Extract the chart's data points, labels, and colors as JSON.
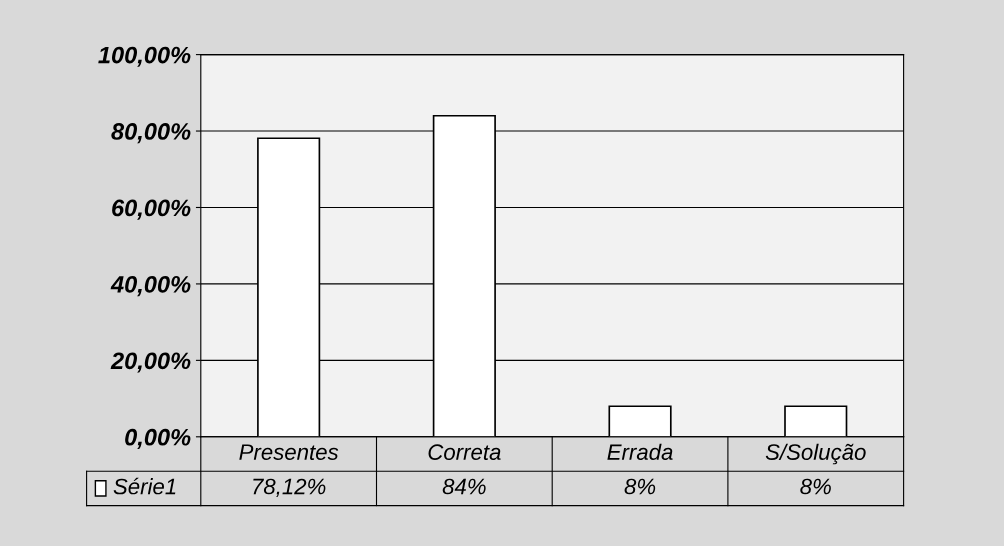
{
  "chart_data": {
    "type": "bar",
    "categories": [
      "Presentes",
      "Correta",
      "Errada",
      "S/Solução"
    ],
    "series": [
      {
        "name": "Série1",
        "color": "#ffffff",
        "values": [
          78.12,
          84,
          8,
          8
        ]
      }
    ],
    "value_labels": [
      "78,12%",
      "84%",
      "8%",
      "8%"
    ],
    "ylim": [
      0,
      100
    ],
    "yticks": [
      {
        "value": 0,
        "label": "0,00%"
      },
      {
        "value": 20,
        "label": "20,00%"
      },
      {
        "value": 40,
        "label": "40,00%"
      },
      {
        "value": 60,
        "label": "60,00%"
      },
      {
        "value": 80,
        "label": "80,00%"
      },
      {
        "value": 100,
        "label": "100,00%"
      }
    ],
    "grid": "y",
    "legend": "bottom left"
  }
}
